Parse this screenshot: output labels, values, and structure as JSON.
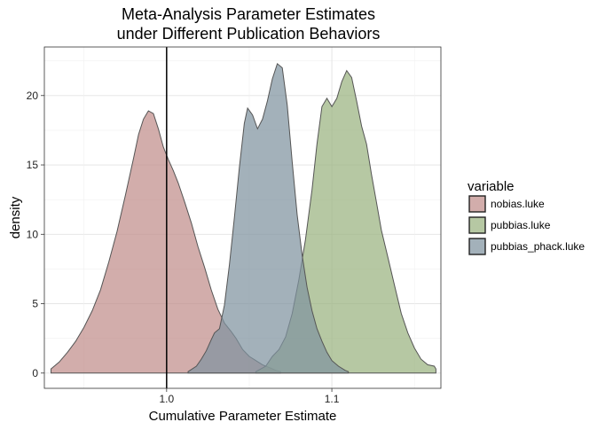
{
  "chart_data": {
    "type": "area",
    "title_lines": [
      "Meta-Analysis Parameter Estimates",
      "under Different Publication Behaviors"
    ],
    "xlabel": "Cumulative Parameter Estimate",
    "ylabel": "density",
    "xlim": [
      0.926,
      1.166
    ],
    "ylim": [
      -1.1,
      23.5
    ],
    "x_ticks": [
      1.0,
      1.1
    ],
    "x_tick_labels": [
      "1.0",
      "1.1"
    ],
    "y_ticks": [
      0,
      5,
      10,
      15,
      20
    ],
    "y_tick_labels": [
      "0",
      "5",
      "10",
      "15",
      "20"
    ],
    "grid": true,
    "vline": {
      "x": 1.0
    },
    "legend": {
      "title": "variable",
      "placement": "right"
    },
    "series": [
      {
        "name": "nobias.luke",
        "color": "#c08e8a",
        "points": [
          [
            0.93,
            0.3
          ],
          [
            0.935,
            0.8
          ],
          [
            0.94,
            1.5
          ],
          [
            0.945,
            2.3
          ],
          [
            0.95,
            3.3
          ],
          [
            0.955,
            4.5
          ],
          [
            0.96,
            6.0
          ],
          [
            0.965,
            8.0
          ],
          [
            0.97,
            10.2
          ],
          [
            0.975,
            12.8
          ],
          [
            0.98,
            15.5
          ],
          [
            0.983,
            17.2
          ],
          [
            0.986,
            18.3
          ],
          [
            0.989,
            18.9
          ],
          [
            0.992,
            18.7
          ],
          [
            0.995,
            17.6
          ],
          [
            0.998,
            16.3
          ],
          [
            1.001,
            15.4
          ],
          [
            1.004,
            14.6
          ],
          [
            1.007,
            13.7
          ],
          [
            1.011,
            12.3
          ],
          [
            1.015,
            10.8
          ],
          [
            1.019,
            9.1
          ],
          [
            1.023,
            7.6
          ],
          [
            1.027,
            6.0
          ],
          [
            1.031,
            4.6
          ],
          [
            1.035,
            3.6
          ],
          [
            1.039,
            3.0
          ],
          [
            1.042,
            2.5
          ],
          [
            1.046,
            1.7
          ],
          [
            1.05,
            1.2
          ],
          [
            1.054,
            0.9
          ],
          [
            1.058,
            0.6
          ],
          [
            1.062,
            0.4
          ],
          [
            1.066,
            0.2
          ],
          [
            1.069,
            0.1
          ]
        ]
      },
      {
        "name": "pubbias.luke",
        "color": "#9ab380",
        "points": [
          [
            1.054,
            0.1
          ],
          [
            1.06,
            0.5
          ],
          [
            1.064,
            1.2
          ],
          [
            1.068,
            1.7
          ],
          [
            1.072,
            2.6
          ],
          [
            1.076,
            4.3
          ],
          [
            1.08,
            6.7
          ],
          [
            1.084,
            9.6
          ],
          [
            1.088,
            13.2
          ],
          [
            1.091,
            16.5
          ],
          [
            1.094,
            19.2
          ],
          [
            1.097,
            19.8
          ],
          [
            1.1,
            19.2
          ],
          [
            1.103,
            19.8
          ],
          [
            1.106,
            21.0
          ],
          [
            1.109,
            21.8
          ],
          [
            1.112,
            21.3
          ],
          [
            1.115,
            19.6
          ],
          [
            1.118,
            17.8
          ],
          [
            1.121,
            16.5
          ],
          [
            1.124,
            14.3
          ],
          [
            1.127,
            12.3
          ],
          [
            1.13,
            10.3
          ],
          [
            1.134,
            8.3
          ],
          [
            1.138,
            6.3
          ],
          [
            1.142,
            4.3
          ],
          [
            1.146,
            2.9
          ],
          [
            1.15,
            1.8
          ],
          [
            1.154,
            1.0
          ],
          [
            1.158,
            0.6
          ],
          [
            1.162,
            0.5
          ],
          [
            1.163,
            0.3
          ]
        ]
      },
      {
        "name": "pubbias_phack.luke",
        "color": "#7f93a0",
        "points": [
          [
            1.013,
            0.1
          ],
          [
            1.018,
            0.5
          ],
          [
            1.021,
            1.0
          ],
          [
            1.024,
            1.6
          ],
          [
            1.027,
            2.4
          ],
          [
            1.029,
            2.9
          ],
          [
            1.032,
            3.2
          ],
          [
            1.035,
            4.9
          ],
          [
            1.038,
            7.8
          ],
          [
            1.041,
            11.2
          ],
          [
            1.044,
            14.8
          ],
          [
            1.047,
            18.0
          ],
          [
            1.049,
            19.1
          ],
          [
            1.052,
            18.6
          ],
          [
            1.055,
            17.6
          ],
          [
            1.058,
            18.3
          ],
          [
            1.061,
            19.6
          ],
          [
            1.064,
            21.2
          ],
          [
            1.067,
            22.3
          ],
          [
            1.07,
            22.0
          ],
          [
            1.073,
            19.3
          ],
          [
            1.076,
            15.2
          ],
          [
            1.079,
            11.4
          ],
          [
            1.082,
            8.5
          ],
          [
            1.085,
            6.2
          ],
          [
            1.088,
            4.5
          ],
          [
            1.091,
            3.2
          ],
          [
            1.094,
            2.3
          ],
          [
            1.097,
            1.5
          ],
          [
            1.1,
            0.9
          ],
          [
            1.104,
            0.5
          ],
          [
            1.108,
            0.2
          ],
          [
            1.11,
            0.1
          ]
        ]
      }
    ]
  }
}
